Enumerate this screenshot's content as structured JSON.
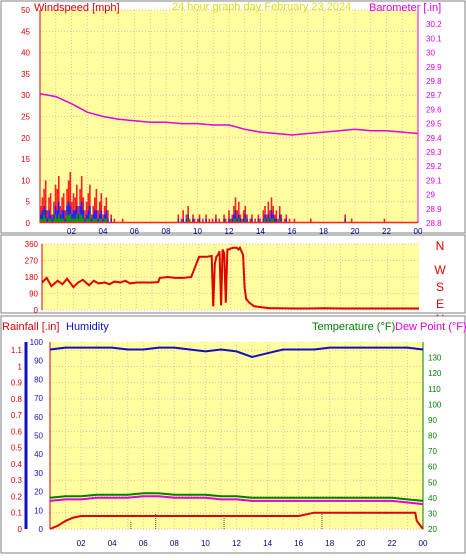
{
  "header": {
    "left_label": "Windspeed [mph]",
    "center_label": "24 hour graph day   February 23 2024",
    "right_label": "Barometer [.in]"
  },
  "colors": {
    "background": "#ffffff",
    "plot_bg": "#ffffa0",
    "border": "#808080",
    "grid": "#ffb0b0",
    "rain": "#e00000",
    "humidity": "#1010c0",
    "temperature": "#008000",
    "dewpoint": "#e000e0",
    "title": "#e0e000",
    "wind_dir": "#e00000",
    "axis_right": "#e000e0"
  },
  "compass": [
    "N",
    "W",
    "S",
    "E",
    "N"
  ],
  "chart_data": [
    {
      "type": "bar",
      "panel": "wind",
      "title": "24 hour graph day   February 23 2024",
      "xlabel": "",
      "x_ticks": [
        "02",
        "04",
        "06",
        "08",
        "10",
        "12",
        "14",
        "16",
        "18",
        "20",
        "22",
        "00"
      ],
      "xlim": [
        0,
        24
      ],
      "ylim_left": [
        0,
        50
      ],
      "y_ticks_left": [
        "0",
        "5",
        "10",
        "15",
        "20",
        "25",
        "30",
        "35",
        "40",
        "45",
        "50"
      ],
      "ylim_right": [
        28.8,
        30.3
      ],
      "y_ticks_right": [
        "28.8",
        "28.9",
        "29",
        "29.1",
        "29.2",
        "29.3",
        "29.4",
        "29.5",
        "29.6",
        "29.7",
        "29.8",
        "29.9",
        "30",
        "30.1",
        "30.2"
      ],
      "grid": true,
      "gust": {
        "name": "Windspeed [mph]",
        "values": [
          4,
          6,
          8,
          10,
          3,
          6,
          7,
          2,
          5,
          9,
          8,
          11,
          4,
          6,
          7,
          3,
          8,
          10,
          12,
          5,
          7,
          6,
          9,
          4,
          8,
          11,
          6,
          3,
          5,
          7,
          9,
          2,
          4,
          6,
          8,
          3,
          5,
          7,
          2,
          4,
          6,
          3,
          0,
          2,
          0,
          1,
          0,
          0,
          0,
          0,
          1,
          0,
          0,
          0,
          0,
          0,
          0,
          0,
          0,
          0,
          0,
          0,
          0,
          0,
          0,
          0,
          0,
          0,
          0,
          0,
          0,
          0,
          0,
          0,
          0,
          0,
          0,
          0,
          0,
          0,
          0,
          0,
          0,
          0,
          2,
          0,
          1,
          3,
          0,
          2,
          4,
          1,
          0,
          2,
          1,
          0,
          1,
          2,
          0,
          1,
          0,
          2,
          0,
          1,
          0,
          1,
          0,
          2,
          0,
          1,
          0,
          0,
          2,
          1,
          0,
          3,
          1,
          2,
          4,
          6,
          3,
          5,
          2,
          1,
          3,
          4,
          2,
          0,
          1,
          2,
          0,
          1,
          0,
          2,
          1,
          0,
          3,
          4,
          2,
          5,
          3,
          6,
          4,
          2,
          3,
          1,
          4,
          2,
          0,
          1,
          2,
          0,
          1,
          0,
          0,
          1,
          0,
          0,
          0,
          0,
          0,
          0,
          0,
          0,
          0,
          1,
          0,
          0,
          0,
          0,
          0,
          0,
          0,
          0,
          0,
          0,
          0,
          0,
          0,
          0,
          0,
          0,
          0,
          0,
          0,
          0,
          2,
          0,
          0,
          0,
          1,
          0,
          0,
          0,
          0,
          0,
          0,
          0,
          0,
          0,
          0,
          0,
          0,
          0,
          0,
          0,
          0,
          0,
          0,
          0,
          1,
          0,
          0,
          0,
          0,
          0,
          0,
          0,
          0,
          0,
          0,
          0,
          0,
          0,
          0,
          0,
          0,
          0,
          0,
          0,
          0
        ]
      },
      "average": {
        "name": "average",
        "values": [
          2,
          3,
          4,
          3,
          1,
          3,
          2,
          1,
          2,
          4,
          3,
          5,
          2,
          3,
          3,
          1,
          4,
          5,
          4,
          2,
          3,
          3,
          4,
          2,
          4,
          5,
          3,
          1,
          2,
          3,
          4,
          1,
          2,
          3,
          3,
          1,
          2,
          3,
          1,
          2,
          3,
          1,
          0,
          1,
          0,
          0,
          0,
          0,
          0,
          0,
          0,
          0,
          0,
          0,
          0,
          0,
          0,
          0,
          0,
          0,
          0,
          0,
          0,
          0,
          0,
          0,
          0,
          0,
          0,
          0,
          0,
          0,
          0,
          0,
          0,
          0,
          0,
          0,
          0,
          0,
          0,
          0,
          0,
          0,
          1,
          0,
          0,
          1,
          0,
          1,
          2,
          0,
          0,
          1,
          0,
          0,
          0,
          1,
          0,
          0,
          0,
          1,
          0,
          0,
          0,
          0,
          0,
          1,
          0,
          0,
          0,
          0,
          1,
          0,
          0,
          1,
          0,
          1,
          2,
          3,
          1,
          2,
          1,
          0,
          1,
          2,
          1,
          0,
          0,
          1,
          0,
          0,
          0,
          1,
          0,
          0,
          1,
          2,
          1,
          2,
          1,
          3,
          2,
          1,
          1,
          0,
          2,
          1,
          0,
          0,
          1,
          0,
          0,
          0,
          0,
          0,
          0,
          0,
          0,
          0,
          0,
          0,
          0,
          0,
          0,
          0,
          0,
          0,
          0,
          0,
          0,
          0,
          0,
          0,
          0,
          0,
          0,
          0,
          0,
          0,
          0,
          0,
          0,
          0,
          0,
          0,
          1,
          0,
          0,
          0,
          0,
          0,
          0,
          0,
          0,
          0,
          0,
          0,
          0,
          0,
          0,
          0,
          0,
          0,
          0,
          0,
          0,
          0,
          0,
          0,
          0,
          0,
          0,
          0,
          0,
          0,
          0,
          0,
          0,
          0,
          0,
          0,
          0,
          0,
          0,
          0,
          0,
          0,
          0,
          0,
          0
        ]
      },
      "lull": {
        "name": "lull",
        "values": [
          1,
          1,
          2,
          1,
          0,
          1,
          1,
          0,
          1,
          2,
          1,
          2,
          1,
          1,
          1,
          0,
          2,
          2,
          2,
          1,
          1,
          1,
          2,
          1,
          2,
          2,
          1,
          0,
          1,
          1,
          2,
          0,
          1,
          1,
          1,
          0,
          1,
          1,
          0,
          1,
          1,
          0,
          0,
          0,
          0,
          0,
          0,
          0,
          0,
          0,
          0,
          0,
          0,
          0,
          0,
          0,
          0,
          0,
          0,
          0,
          0,
          0,
          0,
          0,
          0,
          0,
          0,
          0,
          0,
          0,
          0,
          0,
          0,
          0,
          0,
          0,
          0,
          0,
          0,
          0,
          0,
          0,
          0,
          0,
          0,
          0,
          0,
          0,
          0,
          0,
          1,
          0,
          0,
          0,
          0,
          0,
          0,
          0,
          0,
          0,
          0,
          0,
          0,
          0,
          0,
          0,
          0,
          0,
          0,
          0,
          0,
          0,
          0,
          0,
          0,
          0,
          0,
          0,
          1,
          1,
          0,
          1,
          0,
          0,
          0,
          1,
          0,
          0,
          0,
          0,
          0,
          0,
          0,
          0,
          0,
          0,
          0,
          1,
          0,
          1,
          0,
          1,
          1,
          0,
          0,
          0,
          1,
          0,
          0,
          0,
          0,
          0,
          0,
          0,
          0,
          0,
          0,
          0,
          0,
          0,
          0,
          0,
          0,
          0,
          0,
          0,
          0,
          0,
          0,
          0,
          0,
          0,
          0,
          0,
          0,
          0,
          0,
          0,
          0,
          0,
          0,
          0,
          0,
          0,
          0,
          0,
          0,
          0,
          0,
          0,
          0,
          0,
          0,
          0,
          0,
          0,
          0,
          0,
          0,
          0,
          0,
          0,
          0,
          0,
          0,
          0,
          0,
          0,
          0,
          0,
          0,
          0,
          0,
          0,
          0,
          0,
          0,
          0,
          0,
          0,
          0,
          0,
          0,
          0,
          0,
          0,
          0,
          0,
          0,
          0,
          0
        ]
      },
      "barometer": {
        "name": "Barometer [.in]",
        "x": [
          0,
          1,
          2,
          3,
          4,
          5,
          6,
          7,
          8,
          9,
          10,
          11,
          12,
          13,
          14,
          15,
          16,
          17,
          18,
          19,
          20,
          21,
          22,
          23,
          24
        ],
        "values": [
          29.71,
          29.69,
          29.64,
          29.58,
          29.55,
          29.53,
          29.52,
          29.51,
          29.51,
          29.5,
          29.5,
          29.49,
          29.49,
          29.46,
          29.44,
          29.43,
          29.42,
          29.43,
          29.44,
          29.45,
          29.46,
          29.45,
          29.45,
          29.44,
          29.43
        ]
      }
    },
    {
      "type": "line",
      "panel": "wind_direction",
      "x_ticks": [
        "02",
        "04",
        "06",
        "08",
        "10",
        "12",
        "14",
        "16",
        "18",
        "20",
        "22",
        "00"
      ],
      "xlim": [
        0,
        24
      ],
      "ylim": [
        0,
        360
      ],
      "y_ticks": [
        "0",
        "90",
        "180",
        "270",
        "360"
      ],
      "grid": true,
      "series": [
        {
          "name": "wind direction",
          "x": [
            0,
            0.3,
            0.6,
            1,
            1.3,
            1.6,
            2,
            2.3,
            2.6,
            3,
            3.3,
            3.6,
            4,
            4.3,
            4.6,
            5,
            5.3,
            5.6,
            6,
            6.5,
            7,
            7.4,
            7.5,
            8,
            8.5,
            9,
            9.5,
            10,
            10.5,
            10.8,
            10.9,
            11,
            11.1,
            11.2,
            11.3,
            11.4,
            11.5,
            11.6,
            11.7,
            11.8,
            11.9,
            12,
            12.2,
            12.4,
            12.5,
            12.6,
            12.8,
            12.9,
            13,
            13.2,
            13.5,
            14,
            14.5,
            15,
            16,
            17,
            18,
            19,
            20,
            21,
            22,
            23,
            24
          ],
          "values": [
            150,
            175,
            130,
            160,
            140,
            170,
            125,
            150,
            165,
            135,
            160,
            145,
            150,
            140,
            155,
            150,
            160,
            145,
            150,
            150,
            150,
            152,
            175,
            180,
            175,
            175,
            180,
            290,
            290,
            295,
            20,
            250,
            290,
            300,
            320,
            25,
            330,
            310,
            40,
            330,
            330,
            335,
            340,
            340,
            330,
            340,
            300,
            120,
            60,
            40,
            20,
            15,
            10,
            10,
            8,
            8,
            10,
            8,
            8,
            8,
            8,
            8,
            8
          ]
        }
      ]
    },
    {
      "type": "line",
      "panel": "rain_humidity_temperature",
      "x_ticks": [
        "02",
        "04",
        "06",
        "08",
        "10",
        "12",
        "14",
        "16",
        "18",
        "20",
        "22",
        "00"
      ],
      "xlim": [
        0,
        24
      ],
      "ylim_left": [
        0,
        1.15
      ],
      "y_ticks_left": [
        "0",
        "0.1",
        "0.2",
        "0.3",
        "0.4",
        "0.5",
        "0.6",
        "0.7",
        "0.8",
        "0.9",
        "1",
        "1.1"
      ],
      "y_ticks_humidity": [
        "0",
        "10",
        "20",
        "30",
        "40",
        "50",
        "60",
        "70",
        "80",
        "90",
        "100"
      ],
      "humidity_ylim": [
        0,
        100
      ],
      "ylim_right": [
        20,
        140
      ],
      "y_ticks_right": [
        "20",
        "30",
        "40",
        "50",
        "60",
        "70",
        "80",
        "90",
        "100",
        "110",
        "120",
        "130"
      ],
      "legend": [
        "Rainfall [.in]",
        "Humidity",
        "Temperature (°F)",
        "Dew Point (°F)"
      ],
      "grid": true,
      "series": [
        {
          "name": "Rainfall [.in]",
          "x": [
            0,
            0.5,
            1,
            1.5,
            2,
            3,
            4,
            5,
            6,
            6.9,
            7,
            16,
            17,
            18,
            20,
            22,
            23.5,
            23.6,
            24
          ],
          "values": [
            0,
            0.02,
            0.05,
            0.07,
            0.08,
            0.08,
            0.08,
            0.08,
            0.08,
            0.08,
            0.08,
            0.08,
            0.1,
            0.1,
            0.1,
            0.1,
            0.1,
            0.05,
            0
          ]
        },
        {
          "name": "Humidity",
          "x": [
            0,
            1,
            2,
            3,
            4,
            5,
            6,
            7,
            8,
            9,
            10,
            11,
            12,
            13,
            14,
            15,
            16,
            17,
            18,
            19,
            20,
            21,
            22,
            23,
            24
          ],
          "values": [
            96,
            97,
            97,
            97,
            97,
            96,
            96,
            97,
            97,
            96,
            95,
            96,
            95,
            92,
            94,
            96,
            96,
            96,
            97,
            97,
            97,
            97,
            97,
            97,
            96
          ]
        },
        {
          "name": "Temperature (°F)",
          "x": [
            0,
            1,
            2,
            3,
            4,
            5,
            6,
            7,
            8,
            9,
            10,
            11,
            12,
            13,
            14,
            15,
            16,
            17,
            18,
            19,
            20,
            21,
            22,
            23,
            24
          ],
          "values": [
            40,
            41,
            41,
            42,
            42,
            42,
            43,
            43,
            42,
            42,
            42,
            41,
            41,
            40,
            40,
            40,
            40,
            40,
            40,
            40,
            40,
            40,
            40,
            39,
            38
          ]
        },
        {
          "name": "Dew Point (°F)",
          "x": [
            0,
            1,
            2,
            3,
            4,
            5,
            6,
            7,
            8,
            9,
            10,
            11,
            12,
            13,
            14,
            15,
            16,
            17,
            18,
            19,
            20,
            21,
            22,
            23,
            24
          ],
          "values": [
            38,
            39,
            39,
            40,
            40,
            40,
            41,
            41,
            40,
            40,
            40,
            39,
            39,
            38,
            38,
            38,
            38,
            38,
            38,
            38,
            38,
            38,
            38,
            37,
            36
          ]
        }
      ],
      "rain_rate_markers": {
        "x": [
          5.2,
          6.8,
          11.2,
          17.5
        ],
        "values": [
          0.05,
          0.1,
          0.07,
          0.1
        ]
      }
    }
  ]
}
